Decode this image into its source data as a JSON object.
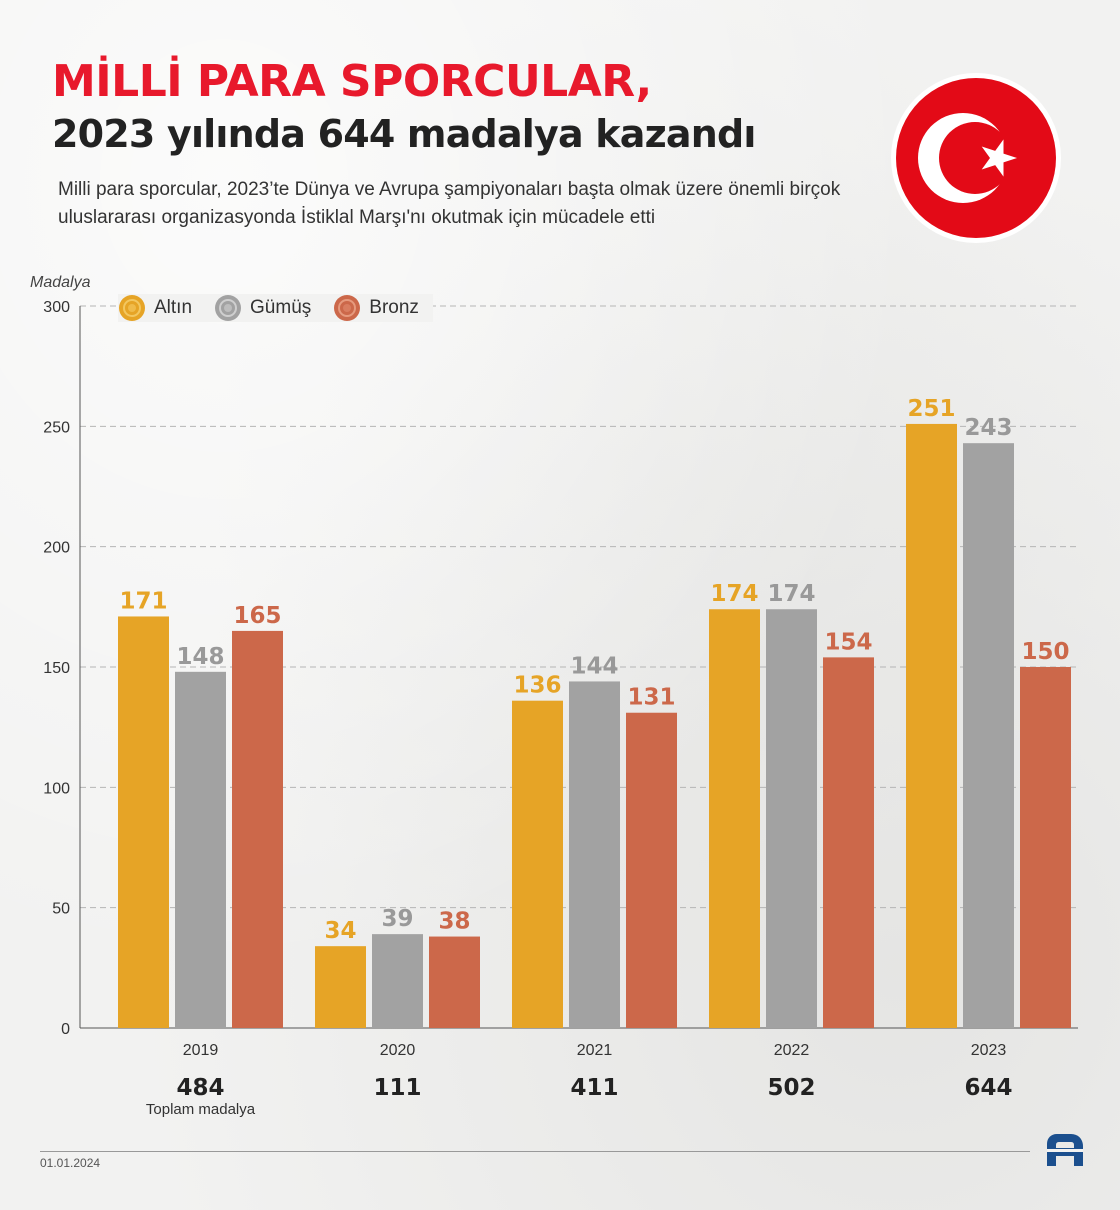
{
  "header": {
    "title_line1": "MİLLİ PARA SPORCULAR,",
    "title_line2": "2023 yılında 644 madalya kazandı",
    "subtitle": "Milli para sporcular, 2023’te Dünya ve Avrupa şampiyonaları başta olmak üzere önemli birçok uluslararası organizasyonda İstiklal Marşı'nı okutmak için mücadele etti"
  },
  "legend": {
    "items": [
      {
        "label": "Altın",
        "color": "#e6a426"
      },
      {
        "label": "Gümüş",
        "color": "#a2a2a2"
      },
      {
        "label": "Bronz",
        "color": "#cc684a"
      }
    ],
    "placement": "top-left"
  },
  "chart_data": {
    "type": "bar",
    "ylabel": "Madalya",
    "ylim": [
      0,
      300
    ],
    "yticks": [
      0,
      50,
      100,
      150,
      200,
      250,
      300
    ],
    "grid": true,
    "categories": [
      "2019",
      "2020",
      "2021",
      "2022",
      "2023"
    ],
    "series": [
      {
        "name": "Altın",
        "color": "#e6a426",
        "label_color": "#e6a426",
        "values": [
          171,
          34,
          136,
          174,
          251
        ]
      },
      {
        "name": "Gümüş",
        "color": "#a2a2a2",
        "label_color": "#999999",
        "values": [
          148,
          39,
          144,
          174,
          243
        ]
      },
      {
        "name": "Bronz",
        "color": "#cc684a",
        "label_color": "#cc684a",
        "values": [
          165,
          38,
          131,
          154,
          150
        ]
      }
    ],
    "totals": [
      "484",
      "111",
      "411",
      "502",
      "644"
    ],
    "totals_label": "Toplam madalya"
  },
  "footer": {
    "date": "01.01.2024",
    "logo": "aa-logo-icon"
  },
  "flag_icon": "turkish-flag-icon"
}
